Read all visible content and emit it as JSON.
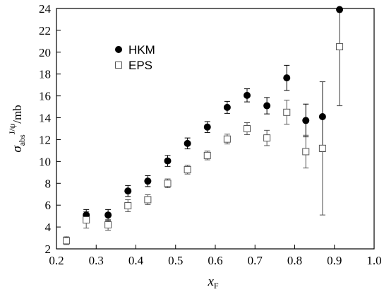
{
  "chart_data": {
    "type": "scatter",
    "title": "",
    "xlabel": "x_F",
    "ylabel": "σ_abs^{J/ψ}/mb",
    "xlim": [
      0.2,
      1.0
    ],
    "ylim": [
      2,
      24
    ],
    "x_ticks": [
      0.2,
      0.3,
      0.4,
      0.5,
      0.6,
      0.7,
      0.8,
      0.9,
      1.0
    ],
    "x_tick_labels": [
      "0.2",
      "0.3",
      "0.4",
      "0.5",
      "0.6",
      "0.7",
      "0.8",
      "0.9",
      "1.0"
    ],
    "y_ticks": [
      2,
      4,
      6,
      8,
      10,
      12,
      14,
      16,
      18,
      20,
      22,
      24
    ],
    "y_tick_labels": [
      "2",
      "4",
      "6",
      "8",
      "10",
      "12",
      "14",
      "16",
      "18",
      "20",
      "22",
      "24"
    ],
    "grid": false,
    "legend_position": "upper-left",
    "series": [
      {
        "name": "HKM",
        "marker": "filled-circle",
        "color": "#000000",
        "points": [
          {
            "x": 0.225,
            "y": 2.8,
            "err": 0.3
          },
          {
            "x": 0.275,
            "y": 5.1,
            "err": 0.5
          },
          {
            "x": 0.33,
            "y": 5.1,
            "err": 0.5
          },
          {
            "x": 0.38,
            "y": 7.3,
            "err": 0.5
          },
          {
            "x": 0.43,
            "y": 8.2,
            "err": 0.5
          },
          {
            "x": 0.48,
            "y": 10.05,
            "err": 0.5
          },
          {
            "x": 0.53,
            "y": 11.65,
            "err": 0.5
          },
          {
            "x": 0.58,
            "y": 13.15,
            "err": 0.5
          },
          {
            "x": 0.63,
            "y": 14.95,
            "err": 0.55
          },
          {
            "x": 0.68,
            "y": 16.05,
            "err": 0.6
          },
          {
            "x": 0.73,
            "y": 15.1,
            "err": 0.75
          },
          {
            "x": 0.78,
            "y": 17.65,
            "err": 1.15
          },
          {
            "x": 0.828,
            "y": 13.75,
            "err": 1.5
          },
          {
            "x": 0.87,
            "y": 14.1,
            "err": 3.2
          },
          {
            "x": 0.913,
            "y": 23.9,
            "err": 8.8
          }
        ]
      },
      {
        "name": "EPS",
        "marker": "open-square",
        "color": "#555555",
        "points": [
          {
            "x": 0.225,
            "y": 2.75,
            "err": 0.35
          },
          {
            "x": 0.275,
            "y": 4.65,
            "err": 0.75
          },
          {
            "x": 0.33,
            "y": 4.2,
            "err": 0.5
          },
          {
            "x": 0.38,
            "y": 5.95,
            "err": 0.55
          },
          {
            "x": 0.43,
            "y": 6.5,
            "err": 0.45
          },
          {
            "x": 0.48,
            "y": 8.0,
            "err": 0.4
          },
          {
            "x": 0.53,
            "y": 9.25,
            "err": 0.4
          },
          {
            "x": 0.58,
            "y": 10.55,
            "err": 0.4
          },
          {
            "x": 0.63,
            "y": 12.05,
            "err": 0.45
          },
          {
            "x": 0.68,
            "y": 13.0,
            "err": 0.55
          },
          {
            "x": 0.73,
            "y": 12.15,
            "err": 0.7
          },
          {
            "x": 0.78,
            "y": 14.5,
            "err": 1.1
          },
          {
            "x": 0.828,
            "y": 10.9,
            "err": 1.5
          },
          {
            "x": 0.87,
            "y": 11.2,
            "err": 6.1
          },
          {
            "x": 0.913,
            "y": 20.5,
            "err": 5.4
          }
        ]
      }
    ]
  }
}
